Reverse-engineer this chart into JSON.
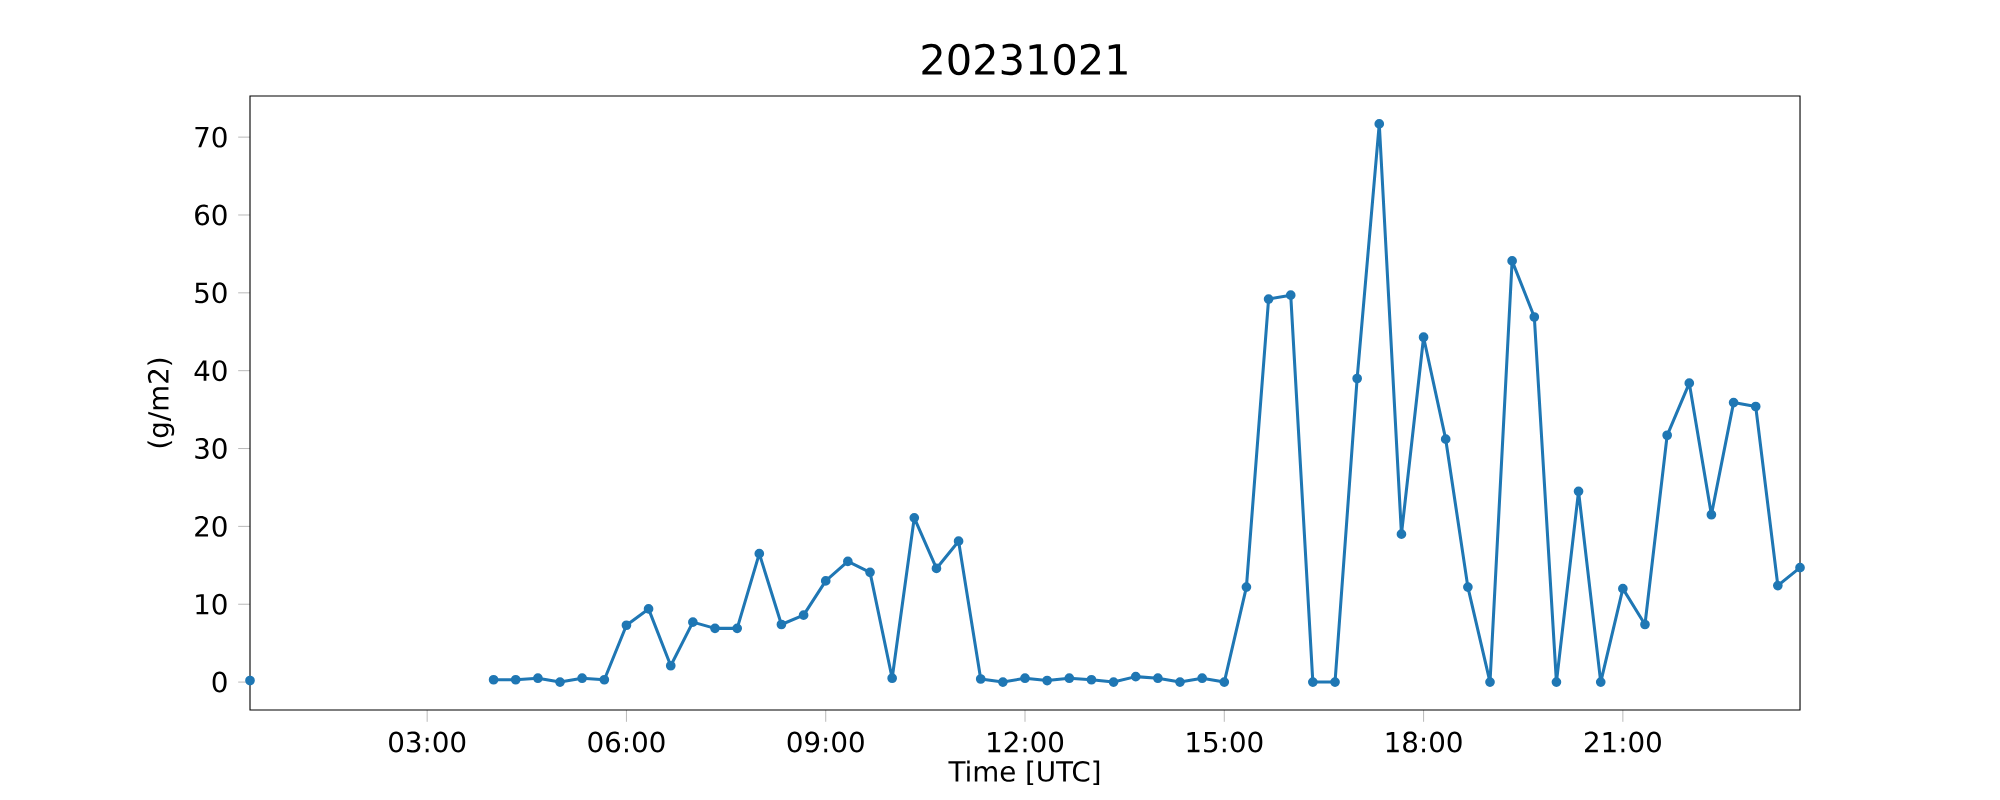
{
  "chart_data": {
    "type": "line",
    "title": "20231021",
    "xlabel": "Time [UTC]",
    "ylabel": "(g/m2)",
    "x": [
      0.333,
      2,
      4,
      4.333,
      4.667,
      5,
      5.333,
      5.667,
      6,
      6.333,
      6.667,
      7,
      7.333,
      7.667,
      8,
      8.333,
      8.667,
      9,
      9.333,
      9.667,
      10,
      10.333,
      10.667,
      11,
      11.333,
      11.667,
      12,
      12.333,
      12.667,
      13,
      13.333,
      13.667,
      14,
      14.333,
      14.667,
      15,
      15.333,
      15.667,
      16,
      16.333,
      16.667,
      17,
      17.333,
      17.667,
      18,
      18.333,
      18.667,
      19,
      19.333,
      19.667,
      20,
      20.333,
      20.667,
      21,
      21.333,
      21.667,
      22,
      22.333,
      22.667,
      23,
      23.333,
      23.667
    ],
    "series": [
      {
        "color": "#1f77b4",
        "values": [
          0.2,
          null,
          0.3,
          0.3,
          0.5,
          0,
          0.5,
          0.3,
          7.3,
          9.4,
          2.1,
          7.7,
          6.9,
          6.9,
          16.5,
          7.4,
          8.6,
          13.0,
          15.5,
          14.1,
          0.5,
          21.1,
          14.6,
          18.1,
          0.4,
          0,
          0.5,
          0.2,
          0.5,
          0.3,
          0,
          0.7,
          0.5,
          0,
          0.5,
          0,
          12.2,
          49.2,
          49.7,
          0,
          0,
          39.0,
          71.7,
          19.0,
          44.3,
          31.2,
          12.2,
          0,
          54.1,
          46.9,
          0,
          24.5,
          0,
          12.0,
          7.4,
          31.7,
          38.4,
          21.5,
          35.9,
          35.4,
          12.4,
          14.7
        ]
      }
    ],
    "xlim": [
      0.333,
      23.667
    ],
    "ylim": [
      -3.585,
      75.285
    ],
    "xticks": [
      {
        "value": 3,
        "label": "03:00"
      },
      {
        "value": 6,
        "label": "06:00"
      },
      {
        "value": 9,
        "label": "09:00"
      },
      {
        "value": 12,
        "label": "12:00"
      },
      {
        "value": 15,
        "label": "15:00"
      },
      {
        "value": 18,
        "label": "18:00"
      },
      {
        "value": 21,
        "label": "21:00"
      }
    ],
    "yticks": [
      0,
      10,
      20,
      30,
      40,
      50,
      60,
      70
    ],
    "marker": "circle",
    "line_style": "solid"
  }
}
